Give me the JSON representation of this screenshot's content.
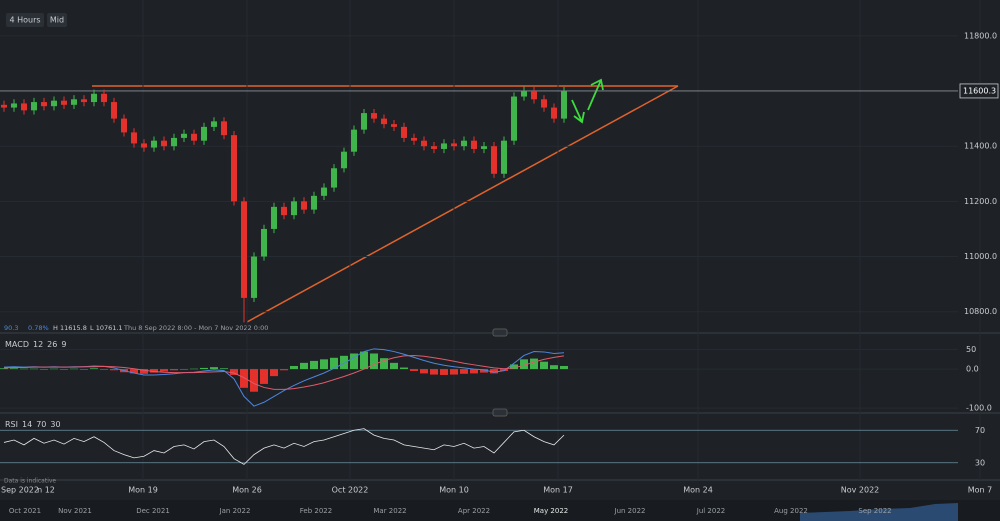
{
  "chart_data": {
    "type": "candlestick",
    "timeframe": "4 Hours",
    "price_mode": "Mid",
    "info": [
      "90.3",
      "0.78%",
      "H 11615.8",
      "L 10761.1",
      "Thu 8 Sep 2022 8:00 - Mon 7 Nov 2022 0:00"
    ],
    "open": [
      11550,
      11540,
      11555,
      11530,
      11560,
      11545,
      11565,
      11550,
      11570,
      11560,
      11590,
      11560,
      11500,
      11450,
      11410,
      11395,
      11420,
      11400,
      11430,
      11445,
      11420,
      11470,
      11490,
      11440,
      11200,
      10850,
      11000,
      11100,
      11180,
      11150,
      11200,
      11170,
      11220,
      11250,
      11320,
      11380,
      11460,
      11520,
      11500,
      11480,
      11470,
      11430,
      11420,
      11400,
      11390,
      11410,
      11400,
      11420,
      11390,
      11400,
      11300,
      11420,
      11580,
      11600,
      11570,
      11540,
      11500
    ],
    "high": [
      11565,
      11570,
      11570,
      11575,
      11575,
      11580,
      11580,
      11585,
      11585,
      11605,
      11605,
      11575,
      11515,
      11465,
      11425,
      11435,
      11435,
      11445,
      11460,
      11460,
      11485,
      11505,
      11505,
      11455,
      11215,
      11015,
      11115,
      11195,
      11195,
      11215,
      11215,
      11235,
      11265,
      11335,
      11395,
      11475,
      11535,
      11535,
      11515,
      11495,
      11485,
      11445,
      11435,
      11415,
      11425,
      11425,
      11435,
      11435,
      11415,
      11415,
      11435,
      11595,
      11615.8,
      11615,
      11585,
      11555,
      11615
    ],
    "low": [
      11525,
      11525,
      11515,
      11515,
      11530,
      11530,
      11535,
      11535,
      11545,
      11545,
      11545,
      11485,
      11435,
      11395,
      11380,
      11380,
      11385,
      11385,
      11415,
      11405,
      11405,
      11455,
      11425,
      11185,
      10761.1,
      10835,
      10985,
      11085,
      11135,
      11135,
      11155,
      11155,
      11205,
      11235,
      11305,
      11365,
      11445,
      11485,
      11465,
      11455,
      11415,
      11405,
      11385,
      11375,
      11375,
      11385,
      11385,
      11375,
      11375,
      11285,
      11285,
      11405,
      11565,
      11555,
      11525,
      11485,
      11485
    ],
    "close": [
      11540,
      11555,
      11530,
      11560,
      11545,
      11565,
      11550,
      11570,
      11560,
      11590,
      11560,
      11500,
      11450,
      11410,
      11395,
      11420,
      11400,
      11430,
      11445,
      11420,
      11470,
      11490,
      11440,
      11200,
      10850,
      11000,
      11100,
      11180,
      11150,
      11200,
      11170,
      11220,
      11250,
      11320,
      11380,
      11460,
      11520,
      11500,
      11480,
      11470,
      11430,
      11420,
      11400,
      11390,
      11410,
      11400,
      11420,
      11390,
      11400,
      11300,
      11420,
      11580,
      11600,
      11570,
      11540,
      11500,
      11600
    ],
    "up_color": "#3fb54c",
    "down_color": "#e5312b",
    "last_price": 11600.3,
    "ylim": [
      10730,
      11930
    ],
    "yticks": [
      {
        "value": 10800,
        "label": "10800.0"
      },
      {
        "value": 11000,
        "label": "11000.0"
      },
      {
        "value": 11200,
        "label": "11200.0"
      },
      {
        "value": 11400,
        "label": "11400.0"
      },
      {
        "value": 11800,
        "label": "11800.0"
      }
    ],
    "x_labels": [
      "Sep 2022",
      "n 12",
      "Mon 19",
      "Mon 26",
      "Oct 2022",
      "Mon 10",
      "Mon 17",
      "Mon 24",
      "Nov 2022",
      "Mon 7"
    ],
    "navigator_labels": [
      "Oct 2021",
      "Nov 2021",
      "Dec 2021",
      "Jan 2022",
      "Feb 2022",
      "Mar 2022",
      "Apr 2022",
      "May 2022",
      "Jun 2022",
      "Jul 2022",
      "Aug 2022",
      "Sep 2022"
    ],
    "disclaimer": "Data is indicative",
    "macd": {
      "name": "MACD",
      "params": [
        12,
        26,
        9
      ],
      "ylim": [
        -110,
        90
      ],
      "yticks": [
        50,
        {
          "value": 0,
          "label": "0.0"
        },
        {
          "value": -100,
          "label": "-100.0"
        }
      ],
      "macd_color": "#4d86dd",
      "signal_color": "#e05a6a",
      "macd": [
        5,
        6,
        5,
        6,
        5,
        6,
        5,
        6,
        6,
        8,
        7,
        3,
        -4,
        -10,
        -15,
        -15,
        -14,
        -12,
        -9,
        -8,
        -5,
        -2,
        -4,
        -25,
        -70,
        -95,
        -85,
        -70,
        -55,
        -42,
        -30,
        -20,
        -10,
        2,
        15,
        30,
        45,
        52,
        50,
        45,
        38,
        30,
        22,
        15,
        10,
        6,
        3,
        0,
        -2,
        -8,
        -4,
        15,
        35,
        45,
        44,
        40,
        42
      ],
      "signal": [
        3,
        4,
        4,
        5,
        5,
        5,
        5,
        5,
        6,
        6,
        7,
        6,
        4,
        1,
        -3,
        -6,
        -8,
        -9,
        -9,
        -9,
        -8,
        -7,
        -6,
        -10,
        -22,
        -37,
        -47,
        -52,
        -52,
        -50,
        -46,
        -41,
        -35,
        -27,
        -19,
        -10,
        0,
        12,
        22,
        29,
        34,
        35,
        33,
        29,
        25,
        20,
        15,
        11,
        7,
        3,
        1,
        3,
        10,
        18,
        25,
        30,
        34
      ],
      "histogram": [
        2,
        2,
        1,
        1,
        0,
        1,
        0,
        1,
        0,
        2,
        0,
        -3,
        -8,
        -11,
        -12,
        -9,
        -6,
        -3,
        0,
        1,
        3,
        5,
        2,
        -15,
        -48,
        -58,
        -38,
        -18,
        -3,
        8,
        16,
        21,
        25,
        29,
        34,
        40,
        45,
        40,
        28,
        16,
        4,
        -5,
        -11,
        -14,
        -15,
        -14,
        -12,
        -11,
        -9,
        -11,
        -5,
        12,
        25,
        27,
        19,
        10,
        8
      ]
    },
    "rsi": {
      "name": "RSI",
      "params": [
        14,
        70,
        30
      ],
      "ylim": [
        10,
        90
      ],
      "yticks": [
        30,
        70
      ],
      "color": "#e8e8e8",
      "values": [
        55,
        58,
        52,
        60,
        54,
        58,
        53,
        60,
        56,
        62,
        55,
        45,
        40,
        36,
        38,
        45,
        42,
        50,
        52,
        47,
        56,
        58,
        50,
        35,
        28,
        40,
        48,
        52,
        48,
        54,
        50,
        56,
        58,
        62,
        66,
        70,
        72,
        64,
        60,
        58,
        52,
        50,
        48,
        46,
        52,
        50,
        54,
        48,
        50,
        42,
        55,
        68,
        70,
        62,
        56,
        52,
        64
      ]
    }
  }
}
